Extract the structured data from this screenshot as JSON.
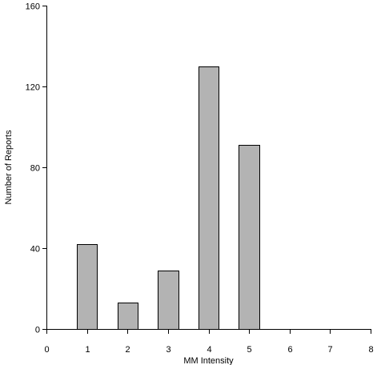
{
  "chart_data": {
    "type": "bar",
    "categories": [
      1,
      2,
      3,
      4,
      5
    ],
    "values": [
      42,
      13,
      29,
      130,
      91
    ],
    "xlabel": "MM Intensity",
    "ylabel": "Number of Reports",
    "xlim": [
      0,
      8
    ],
    "ylim": [
      0,
      160
    ],
    "x_ticks": [
      0,
      1,
      2,
      3,
      4,
      5,
      6,
      7,
      8
    ],
    "y_ticks": [
      0,
      40,
      80,
      120,
      160
    ],
    "bar_width_units": 0.5,
    "grid": false,
    "legend": "none",
    "colors": {
      "bar_fill": "#b3b3b3",
      "bar_stroke": "#000000",
      "axis": "#000000"
    }
  }
}
